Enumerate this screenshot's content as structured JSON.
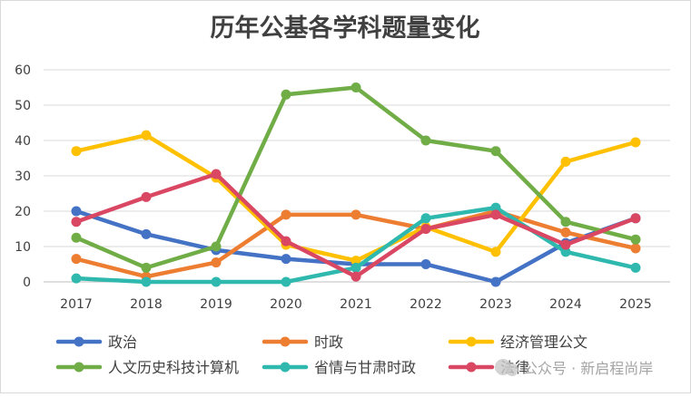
{
  "chart_data": {
    "type": "line",
    "title": "历年公基各学科题量变化",
    "categories": [
      "2017",
      "2018",
      "2019",
      "2020",
      "2021",
      "2022",
      "2023",
      "2024",
      "2025"
    ],
    "ylim": [
      0,
      60
    ],
    "yticks": [
      "0",
      "10",
      "20",
      "30",
      "40",
      "50",
      "60"
    ],
    "grid": "horizontal",
    "legend_position": "bottom",
    "series": [
      {
        "name": "政治",
        "color": "#4472C4",
        "values": [
          20,
          13.5,
          9,
          6.5,
          5,
          5,
          0,
          11,
          18
        ]
      },
      {
        "name": "时政",
        "color": "#ED7D31",
        "values": [
          6.5,
          1.5,
          5.5,
          19,
          19,
          15,
          20,
          14,
          9.5
        ]
      },
      {
        "name": "经济管理公文",
        "color": "#FFC000",
        "values": [
          37,
          41.5,
          29.5,
          10.5,
          6,
          15.5,
          8.5,
          34,
          39.5
        ]
      },
      {
        "name": "人文历史科技计算机",
        "color": "#70AD47",
        "values": [
          12.5,
          4,
          10,
          53,
          55,
          40,
          37,
          17,
          12
        ]
      },
      {
        "name": "省情与甘肃时政",
        "color": "#2EB8AE",
        "values": [
          1,
          0,
          0,
          0,
          4,
          18,
          21,
          8.5,
          4
        ]
      },
      {
        "name": "法律",
        "color": "#D94763",
        "values": [
          17,
          24,
          30.5,
          11.5,
          1.5,
          15,
          19,
          10.5,
          18
        ]
      }
    ]
  },
  "watermark": "公众号 · 新启程尚岸"
}
